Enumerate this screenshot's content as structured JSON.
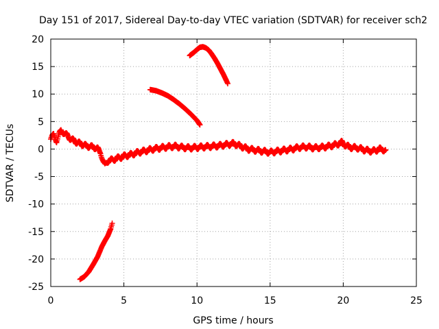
{
  "chart_data": {
    "type": "scatter",
    "title": "Day 151 of 2017, Sidereal Day-to-day VTEC variation (SDTVAR) for receiver sch2",
    "xlabel": "GPS time / hours",
    "ylabel": "SDTVAR / TECUs",
    "xlim": [
      0,
      25
    ],
    "ylim": [
      -25,
      20
    ],
    "xticks": [
      0,
      5,
      10,
      15,
      20,
      25
    ],
    "xtick_labels": [
      "0",
      "5",
      "10",
      "15",
      "20",
      "25"
    ],
    "yticks": [
      -25,
      -20,
      -15,
      -10,
      -5,
      0,
      5,
      10,
      15,
      20
    ],
    "ytick_labels": [
      "-25",
      "-20",
      "-15",
      "-10",
      "-5",
      "0",
      "5",
      "10",
      "15",
      "20"
    ],
    "grid": true,
    "marker": "+",
    "color": "#ff0000",
    "series": [
      {
        "name": "main",
        "x": [
          0.0,
          0.1,
          0.2,
          0.3,
          0.4,
          0.5,
          0.6,
          0.7,
          0.8,
          0.9,
          1.0,
          1.2,
          1.4,
          1.6,
          1.8,
          2.0,
          2.2,
          2.4,
          2.6,
          2.8,
          3.0,
          3.2,
          3.4,
          3.5,
          3.6,
          3.7,
          3.8,
          3.9,
          4.0,
          4.2,
          4.5,
          4.8,
          5.0,
          5.5,
          6.0,
          6.5,
          7.0,
          7.5,
          8.0,
          8.5,
          9.0,
          9.5,
          10.0,
          10.5,
          11.0,
          11.5,
          12.0,
          12.5,
          13.0,
          13.5,
          14.0,
          14.5,
          15.0,
          15.5,
          16.0,
          16.5,
          17.0,
          17.5,
          18.0,
          18.5,
          19.0,
          19.5,
          19.9,
          20.2,
          20.5,
          21.0,
          21.5,
          22.0,
          22.5,
          22.9
        ],
        "y": [
          1.8,
          2.2,
          2.6,
          2.0,
          1.5,
          2.2,
          2.8,
          3.3,
          3.1,
          3.0,
          2.8,
          2.2,
          1.8,
          1.5,
          1.2,
          1.0,
          0.8,
          0.6,
          0.5,
          0.4,
          0.3,
          0.0,
          -0.5,
          -1.5,
          -2.5,
          -3.0,
          -2.5,
          -2.2,
          -2.0,
          -2.0,
          -1.7,
          -1.5,
          -1.3,
          -1.0,
          -0.6,
          -0.3,
          0.0,
          0.2,
          0.4,
          0.5,
          0.3,
          0.2,
          0.3,
          0.4,
          0.5,
          0.6,
          0.8,
          1.0,
          0.5,
          0.0,
          -0.2,
          -0.4,
          -0.6,
          -0.4,
          -0.2,
          0.0,
          0.3,
          0.4,
          0.2,
          0.3,
          0.5,
          0.8,
          1.2,
          0.6,
          0.3,
          0.2,
          -0.2,
          -0.4,
          0.0,
          -0.2
        ]
      },
      {
        "name": "arc_upper",
        "x": [
          9.5,
          9.8,
          10.0,
          10.2,
          10.4,
          10.6,
          10.8,
          11.0,
          11.2,
          11.4,
          11.6,
          11.8,
          12.0,
          12.1
        ],
        "y": [
          17.0,
          17.6,
          18.1,
          18.5,
          18.6,
          18.4,
          18.0,
          17.3,
          16.5,
          15.6,
          14.6,
          13.6,
          12.5,
          11.9
        ]
      },
      {
        "name": "line_descending",
        "x": [
          6.8,
          7.2,
          7.6,
          8.0,
          8.4,
          8.8,
          9.2,
          9.6,
          10.0,
          10.2
        ],
        "y": [
          10.8,
          10.6,
          10.2,
          9.7,
          9.0,
          8.2,
          7.3,
          6.3,
          5.2,
          4.4
        ]
      },
      {
        "name": "line_ascending",
        "x": [
          2.0,
          2.3,
          2.6,
          2.9,
          3.2,
          3.5,
          3.7,
          3.9,
          4.1,
          4.2
        ],
        "y": [
          -23.7,
          -23.2,
          -22.3,
          -21.0,
          -19.6,
          -17.7,
          -16.7,
          -15.8,
          -14.5,
          -13.5
        ]
      }
    ]
  }
}
